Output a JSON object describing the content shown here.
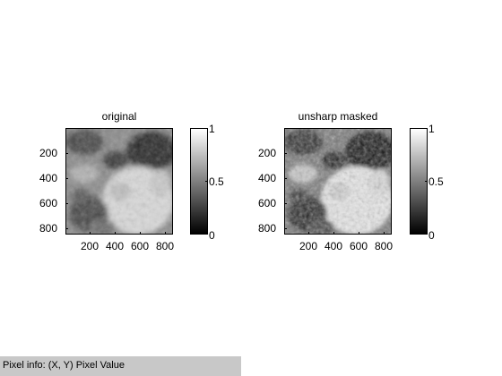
{
  "figure": {
    "left_panel": {
      "title": "original",
      "y_ticks": [
        "200",
        "400",
        "600",
        "800"
      ],
      "x_ticks": [
        "200",
        "400",
        "600",
        "800"
      ],
      "colorbar_ticks": [
        "1",
        "0.5",
        "0"
      ]
    },
    "right_panel": {
      "title": "unsharp masked",
      "y_ticks": [
        "200",
        "400",
        "600",
        "800"
      ],
      "x_ticks": [
        "200",
        "400",
        "600",
        "800"
      ],
      "colorbar_ticks": [
        "1",
        "0.5",
        "0"
      ]
    }
  },
  "status_bar": {
    "text": "Pixel info: (X, Y)  Pixel Value"
  }
}
